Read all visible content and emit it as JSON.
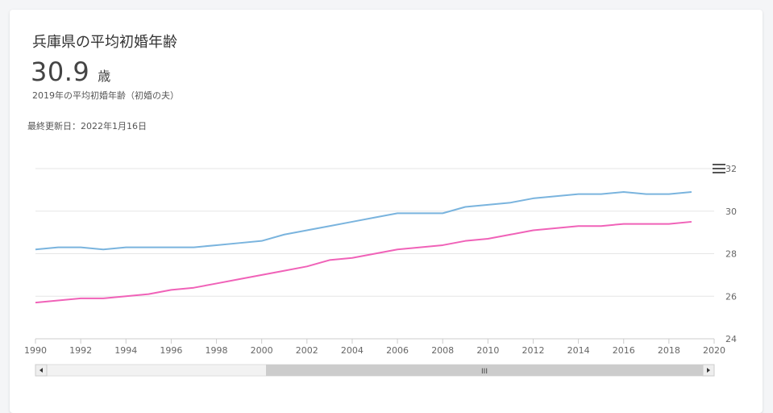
{
  "header": {
    "title": "兵庫県の平均初婚年齢",
    "value": "30.9",
    "unit": "歳",
    "subtitle": "2019年の平均初婚年齢（初婚の夫）",
    "updated": "最終更新日：2022年1月16日"
  },
  "colors": {
    "husband": "#7ab4de",
    "wife": "#f062b8",
    "grid": "#e6e6e6",
    "axis": "#cccccc",
    "scrollbar_thumb": "#cccccc",
    "scrollbar_track": "#f2f2f2"
  },
  "menu_icon": "hamburger-menu-icon",
  "chart_data": {
    "type": "line",
    "x": [
      1990,
      1991,
      1992,
      1993,
      1994,
      1995,
      1996,
      1997,
      1998,
      1999,
      2000,
      2001,
      2002,
      2003,
      2004,
      2005,
      2006,
      2007,
      2008,
      2009,
      2010,
      2011,
      2012,
      2013,
      2014,
      2015,
      2016,
      2017,
      2018,
      2019
    ],
    "series": [
      {
        "values": [
          28.2,
          28.3,
          28.3,
          28.2,
          28.3,
          28.3,
          28.3,
          28.3,
          28.4,
          28.5,
          28.6,
          28.9,
          29.1,
          29.3,
          29.5,
          29.7,
          29.9,
          29.9,
          29.9,
          30.2,
          30.3,
          30.4,
          30.6,
          30.7,
          30.8,
          30.8,
          30.9,
          30.8,
          30.8,
          30.9
        ]
      },
      {
        "values": [
          25.7,
          25.8,
          25.9,
          25.9,
          26.0,
          26.1,
          26.3,
          26.4,
          26.6,
          26.8,
          27.0,
          27.2,
          27.4,
          27.7,
          27.8,
          28.0,
          28.2,
          28.3,
          28.4,
          28.6,
          28.7,
          28.9,
          29.1,
          29.2,
          29.3,
          29.3,
          29.4,
          29.4,
          29.4,
          29.5
        ]
      }
    ],
    "x_ticks": [
      "1990",
      "1992",
      "1994",
      "1996",
      "1998",
      "2000",
      "2002",
      "2004",
      "2006",
      "2008",
      "2010",
      "2012",
      "2014",
      "2016",
      "2018",
      "2020"
    ],
    "y_ticks": [
      "24",
      "26",
      "28",
      "30",
      "32"
    ],
    "xlim": [
      1990,
      2020
    ],
    "ylim": [
      24,
      32
    ],
    "grid": true,
    "scrollbar": {
      "grip": "III"
    }
  }
}
